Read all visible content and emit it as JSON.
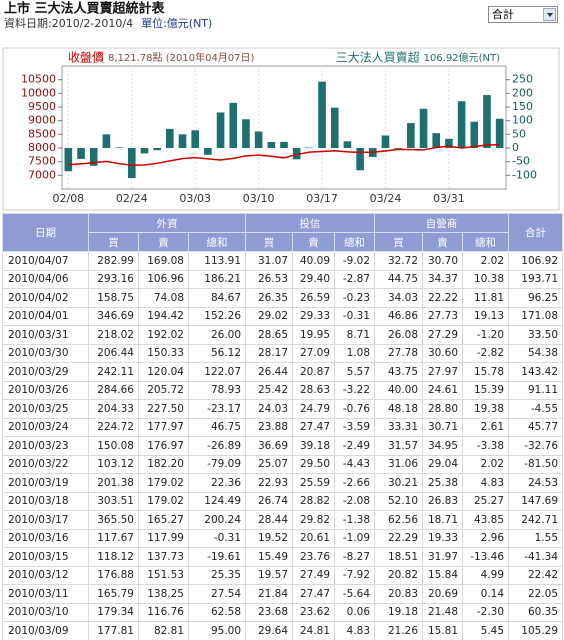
{
  "header": {
    "title": "上市 三大法人買賣超統計表",
    "date": "資料日期:2010/2-2010/4",
    "unit": "單位:億元(NT)",
    "select": "合計"
  },
  "chart_data": {
    "type": "combo",
    "legend_notes": [
      "8,121.78點 (2010年04月07日)",
      "106.92億元(NT)"
    ],
    "categories": [
      "02/08",
      null,
      null,
      null,
      null,
      "02/24",
      null,
      null,
      null,
      null,
      "03/03",
      null,
      null,
      null,
      null,
      "03/10",
      null,
      null,
      null,
      null,
      "03/17",
      null,
      null,
      null,
      null,
      "03/24",
      null,
      null,
      null,
      null,
      "03/31",
      null,
      null,
      null,
      null
    ],
    "series": [
      {
        "name": "收盤價",
        "type": "line",
        "color": "#cc0000",
        "values": [
          7390,
          7420,
          7460,
          7510,
          7430,
          7370,
          7380,
          7440,
          7530,
          7610,
          7650,
          7600,
          7560,
          7620,
          7710,
          7740,
          7700,
          7640,
          7760,
          7850,
          7870,
          7900,
          7860,
          7840,
          7850,
          7890,
          7950,
          7940,
          7930,
          8020,
          8070,
          8000,
          8050,
          8110,
          8121.78
        ]
      },
      {
        "name": "三大法人買賣超",
        "type": "bar",
        "axis": "y2",
        "color": "#1f6f70",
        "values": [
          -85,
          -40,
          -65,
          50,
          2,
          -110,
          -20,
          -8,
          70,
          50,
          65,
          -25,
          130,
          165,
          105.29,
          60.35,
          22.05,
          22.42,
          -41.34,
          1.55,
          242.71,
          147.69,
          24.53,
          -81.5,
          -32.76,
          45.77,
          -4.55,
          91.11,
          143.42,
          54.38,
          33.5,
          171.08,
          96.25,
          193.71,
          106.92
        ]
      }
    ],
    "ylim": [
      6500,
      11000
    ],
    "yticks": [
      7000,
      7500,
      8000,
      8500,
      9000,
      9500,
      10000,
      10500
    ],
    "y2lim": [
      -150,
      300
    ],
    "y2ticks": [
      -100,
      -50,
      0,
      50,
      100,
      150,
      200,
      250
    ]
  },
  "table": {
    "date_label": "日期",
    "total_label": "合計",
    "groups": [
      {
        "name": "外資",
        "columns": [
          "買",
          "賣",
          "總和"
        ]
      },
      {
        "name": "投信",
        "columns": [
          "買",
          "賣",
          "總和"
        ]
      },
      {
        "name": "自營商",
        "columns": [
          "買",
          "賣",
          "總和"
        ]
      }
    ],
    "rows": [
      [
        "2010/04/07",
        "282.99",
        "169.08",
        "113.91",
        "31.07",
        "40.09",
        "-9.02",
        "32.72",
        "30.70",
        "2.02",
        "106.92"
      ],
      [
        "2010/04/06",
        "293.16",
        "106.96",
        "186.21",
        "26.53",
        "29.40",
        "-2.87",
        "44.75",
        "34.37",
        "10.38",
        "193.71"
      ],
      [
        "2010/04/02",
        "158.75",
        "74.08",
        "84.67",
        "26.35",
        "26.59",
        "-0.23",
        "34.03",
        "22.22",
        "11.81",
        "96.25"
      ],
      [
        "2010/04/01",
        "346.69",
        "194.42",
        "152.26",
        "29.02",
        "29.33",
        "-0.31",
        "46.86",
        "27.73",
        "19.13",
        "171.08"
      ],
      [
        "2010/03/31",
        "218.02",
        "192.02",
        "26.00",
        "28.65",
        "19.95",
        "8.71",
        "26.08",
        "27.29",
        "-1.20",
        "33.50"
      ],
      [
        "2010/03/30",
        "206.44",
        "150.33",
        "56.12",
        "28.17",
        "27.09",
        "1.08",
        "27.78",
        "30.60",
        "-2.82",
        "54.38"
      ],
      [
        "2010/03/29",
        "242.11",
        "120.04",
        "122.07",
        "26.44",
        "20.87",
        "5.57",
        "43.75",
        "27.97",
        "15.78",
        "143.42"
      ],
      [
        "2010/03/26",
        "284.66",
        "205.72",
        "78.93",
        "25.42",
        "28.63",
        "-3.22",
        "40.00",
        "24.61",
        "15.39",
        "91.11"
      ],
      [
        "2010/03/25",
        "204.33",
        "227.50",
        "-23.17",
        "24.03",
        "24.79",
        "-0.76",
        "48.18",
        "28.80",
        "19.38",
        "-4.55"
      ],
      [
        "2010/03/24",
        "224.72",
        "177.97",
        "46.75",
        "23.88",
        "27.47",
        "-3.59",
        "33.31",
        "30.71",
        "2.61",
        "45.77"
      ],
      [
        "2010/03/23",
        "150.08",
        "176.97",
        "-26.89",
        "36.69",
        "39.18",
        "-2.49",
        "31.57",
        "34.95",
        "-3.38",
        "-32.76"
      ],
      [
        "2010/03/22",
        "103.12",
        "182.20",
        "-79.09",
        "25.07",
        "29.50",
        "-4.43",
        "31.06",
        "29.04",
        "2.02",
        "-81.50"
      ],
      [
        "2010/03/19",
        "201.38",
        "179.02",
        "22.36",
        "22.93",
        "25.59",
        "-2.66",
        "30.21",
        "25.38",
        "4.83",
        "24.53"
      ],
      [
        "2010/03/18",
        "303.51",
        "179.02",
        "124.49",
        "26.74",
        "28.82",
        "-2.08",
        "52.10",
        "26.83",
        "25.27",
        "147.69"
      ],
      [
        "2010/03/17",
        "365.50",
        "165.27",
        "200.24",
        "28.44",
        "29.82",
        "-1.38",
        "62.56",
        "18.71",
        "43.85",
        "242.71"
      ],
      [
        "2010/03/16",
        "117.67",
        "117.99",
        "-0.31",
        "19.52",
        "20.61",
        "-1.09",
        "22.29",
        "19.33",
        "2.96",
        "1.55"
      ],
      [
        "2010/03/15",
        "118.12",
        "137.73",
        "-19.61",
        "15.49",
        "23.76",
        "-8.27",
        "18.51",
        "31.97",
        "-13.46",
        "-41.34"
      ],
      [
        "2010/03/12",
        "176.88",
        "151.53",
        "25.35",
        "19.57",
        "27.49",
        "-7.92",
        "20.82",
        "15.84",
        "4.99",
        "22.42"
      ],
      [
        "2010/03/11",
        "165.79",
        "138.25",
        "27.54",
        "21.84",
        "27.47",
        "-5.64",
        "20.83",
        "20.69",
        "0.14",
        "22.05"
      ],
      [
        "2010/03/10",
        "179.34",
        "116.76",
        "62.58",
        "23.68",
        "23.62",
        "0.06",
        "19.18",
        "21.48",
        "-2.30",
        "60.35"
      ],
      [
        "2010/03/09",
        "177.81",
        "82.81",
        "95.00",
        "29.64",
        "24.81",
        "4.83",
        "21.26",
        "15.81",
        "5.45",
        "105.29"
      ]
    ]
  }
}
